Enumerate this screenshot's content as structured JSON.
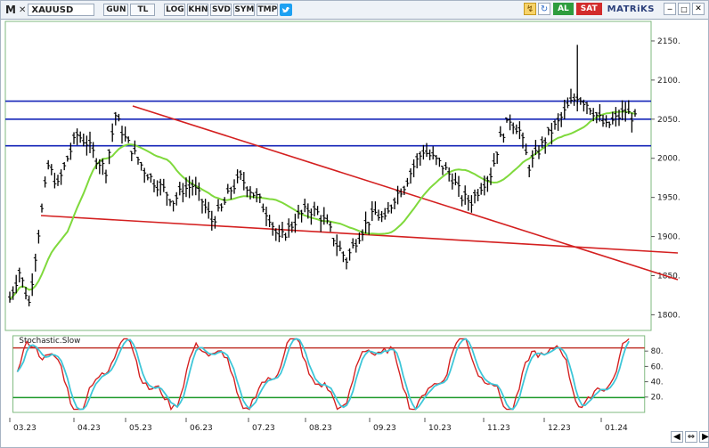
{
  "toolbar": {
    "app_letter": "M",
    "symbol": "XAUUSD",
    "buttons": [
      "GUN",
      "TL",
      "LOG",
      "KHN",
      "SVD",
      "SYM",
      "TMP"
    ],
    "buy_label": "AL",
    "sell_label": "SAT",
    "brand": "MATRiKS"
  },
  "chart_data": {
    "type": "candlestick",
    "y_ticks": [
      "2150.",
      "2100.",
      "2050.",
      "2000.",
      "1950.",
      "1900.",
      "1850.",
      "1800."
    ],
    "ylim": [
      1780,
      2175
    ],
    "x_ticks": [
      "03.23",
      "04.23",
      "05.23",
      "06.23",
      "07.23",
      "08.23",
      "09.23",
      "10.23",
      "11.23",
      "12.23",
      "01.24"
    ],
    "horizontal_levels": [
      2073,
      2050,
      2016
    ],
    "price_path": [
      [
        0,
        1820
      ],
      [
        3,
        1855
      ],
      [
        6,
        1815
      ],
      [
        9,
        1905
      ],
      [
        12,
        1990
      ],
      [
        15,
        1965
      ],
      [
        18,
        2000
      ],
      [
        21,
        2030
      ],
      [
        24,
        2020
      ],
      [
        27,
        2000
      ],
      [
        30,
        1985
      ],
      [
        33,
        2055
      ],
      [
        36,
        2025
      ],
      [
        39,
        2005
      ],
      [
        42,
        1985
      ],
      [
        45,
        1970
      ],
      [
        48,
        1960
      ],
      [
        51,
        1945
      ],
      [
        54,
        1960
      ],
      [
        57,
        1965
      ],
      [
        60,
        1945
      ],
      [
        63,
        1920
      ],
      [
        66,
        1935
      ],
      [
        69,
        1960
      ],
      [
        72,
        1975
      ],
      [
        75,
        1960
      ],
      [
        78,
        1945
      ],
      [
        81,
        1925
      ],
      [
        84,
        1895
      ],
      [
        87,
        1910
      ],
      [
        90,
        1925
      ],
      [
        93,
        1935
      ],
      [
        96,
        1930
      ],
      [
        99,
        1915
      ],
      [
        102,
        1890
      ],
      [
        105,
        1870
      ],
      [
        108,
        1895
      ],
      [
        111,
        1915
      ],
      [
        114,
        1930
      ],
      [
        117,
        1920
      ],
      [
        120,
        1950
      ],
      [
        123,
        1965
      ],
      [
        126,
        1990
      ],
      [
        129,
        2010
      ],
      [
        132,
        2000
      ],
      [
        135,
        1990
      ],
      [
        138,
        1975
      ],
      [
        141,
        1950
      ],
      [
        144,
        1945
      ],
      [
        147,
        1965
      ],
      [
        150,
        1980
      ],
      [
        153,
        2025
      ],
      [
        156,
        2050
      ],
      [
        159,
        2035
      ],
      [
        162,
        1990
      ],
      [
        165,
        2010
      ],
      [
        168,
        2030
      ],
      [
        171,
        2045
      ],
      [
        174,
        2065
      ],
      [
        177,
        2080
      ],
      [
        180,
        2070
      ],
      [
        183,
        2055
      ],
      [
        186,
        2040
      ],
      [
        189,
        2050
      ],
      [
        192,
        2060
      ],
      [
        195,
        2050
      ]
    ],
    "price_range": [
      1800,
      2150
    ],
    "ma_series": "moving average (green)",
    "stochastic": {
      "label": "Stochastic.Slow",
      "levels": [
        80,
        20
      ],
      "y_ticks": [
        "80.",
        "60.",
        "40.",
        "20."
      ],
      "ylim": [
        0,
        100
      ]
    }
  }
}
